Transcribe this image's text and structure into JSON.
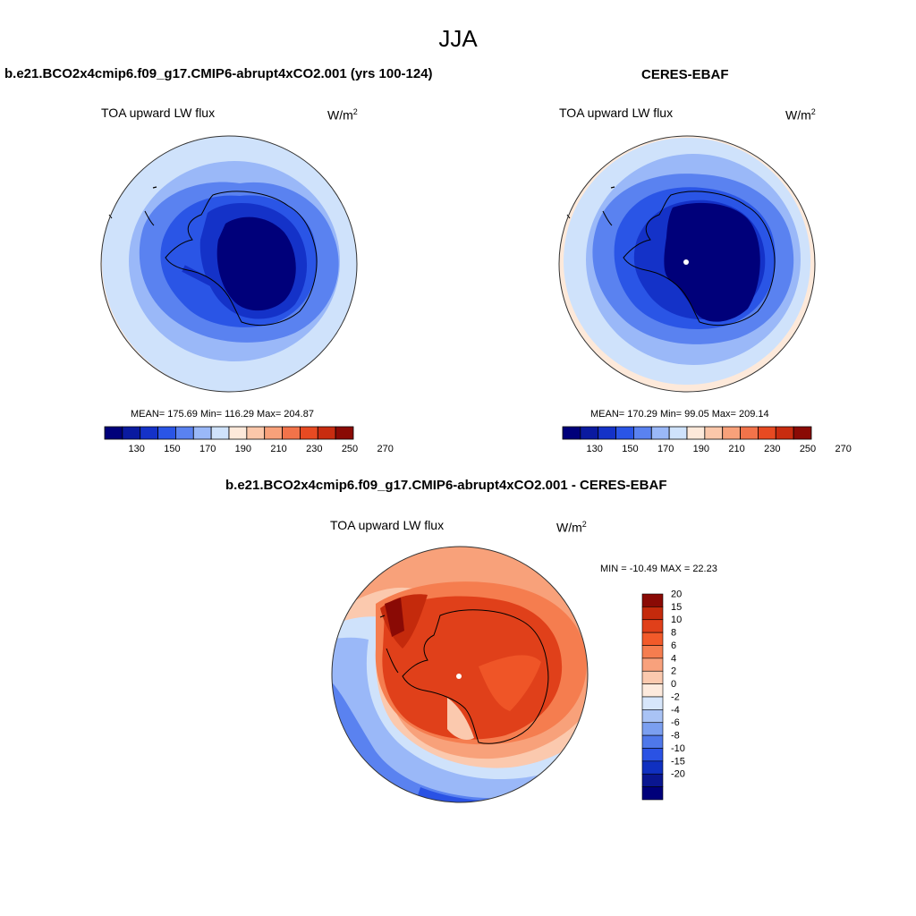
{
  "page_title": "JJA",
  "panels": {
    "model": {
      "title": "b.e21.BCO2x4cmip6.f09_g17.CMIP6-abrupt4xCO2.001 (yrs 100-124)",
      "variable": "TOA upward LW flux",
      "units_base": "W/m",
      "units_exp": "2",
      "stats": "MEAN= 175.69  Min= 116.29  Max= 204.87"
    },
    "obs": {
      "title": "CERES-EBAF",
      "variable": "TOA upward LW flux",
      "units_base": "W/m",
      "units_exp": "2",
      "stats": "MEAN= 170.29  Min=  99.05  Max= 209.14"
    },
    "diff": {
      "title": "b.e21.BCO2x4cmip6.f09_g17.CMIP6-abrupt4xCO2.001 - CERES-EBAF",
      "variable": "TOA upward LW flux",
      "units_base": "W/m",
      "units_exp": "2",
      "stats": "MIN = -10.49 MAX =  22.23"
    }
  },
  "colorbar_abs": {
    "ticks": [
      "130",
      "150",
      "170",
      "190",
      "210",
      "230",
      "250",
      "270"
    ],
    "colors": [
      "#00007a",
      "#0a1aa0",
      "#1432c8",
      "#2a55e6",
      "#5a82f0",
      "#9ab8f8",
      "#cfe2fb",
      "#fde9da",
      "#fbc7aa",
      "#f8a17a",
      "#f2734a",
      "#e74a22",
      "#c82c10",
      "#8a0a05"
    ]
  },
  "colorbar_diff": {
    "labels": [
      "20",
      "15",
      "10",
      "8",
      "6",
      "4",
      "2",
      "0",
      "-2",
      "-4",
      "-6",
      "-8",
      "-10",
      "-15",
      "-20"
    ],
    "colors": [
      "#8a0a05",
      "#c42a0c",
      "#e0401a",
      "#f25a2a",
      "#f57d4f",
      "#f8a17c",
      "#fbc9ae",
      "#fdeadd",
      "#d7e6fb",
      "#a9c3f5",
      "#7b9ff0",
      "#4f78ea",
      "#2a52e4",
      "#1030c0",
      "#0a1690",
      "#00007a"
    ]
  },
  "colors": {
    "land_outline": "#000000",
    "circle_outline": "#333333"
  }
}
